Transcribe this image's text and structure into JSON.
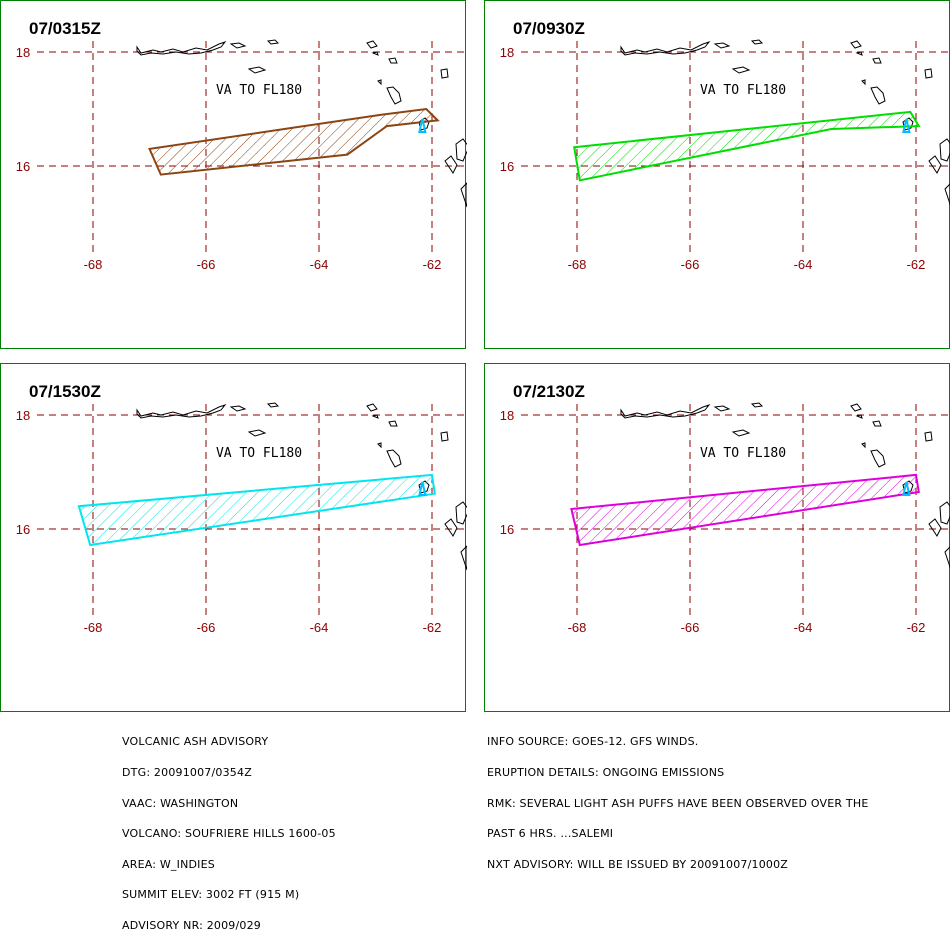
{
  "panels": [
    {
      "time": "07/0315Z",
      "label": "VA TO FL180",
      "color": "#8B4513",
      "polygon": [
        [
          -67.0,
          16.3
        ],
        [
          -66.8,
          15.85
        ],
        [
          -63.5,
          16.2
        ],
        [
          -62.8,
          16.7
        ],
        [
          -61.9,
          16.8
        ],
        [
          -62.1,
          17.0
        ],
        [
          -62.9,
          16.9
        ],
        [
          -67.0,
          16.3
        ]
      ]
    },
    {
      "time": "07/0930Z",
      "label": "VA TO FL180",
      "color": "#00DD00",
      "polygon": [
        [
          -68.05,
          16.33
        ],
        [
          -67.95,
          15.75
        ],
        [
          -63.5,
          16.65
        ],
        [
          -61.95,
          16.7
        ],
        [
          -62.1,
          16.95
        ],
        [
          -68.05,
          16.33
        ]
      ]
    },
    {
      "time": "07/1530Z",
      "label": "VA TO FL180",
      "color": "#00E5EE",
      "polygon": [
        [
          -68.25,
          16.4
        ],
        [
          -68.05,
          15.72
        ],
        [
          -61.95,
          16.62
        ],
        [
          -62.0,
          16.95
        ],
        [
          -68.25,
          16.4
        ]
      ]
    },
    {
      "time": "07/2130Z",
      "label": "VA TO FL180",
      "color": "#DD00DD",
      "polygon": [
        [
          -68.1,
          16.35
        ],
        [
          -67.95,
          15.72
        ],
        [
          -61.95,
          16.65
        ],
        [
          -62.0,
          16.95
        ],
        [
          -68.1,
          16.35
        ]
      ]
    }
  ],
  "axes": {
    "lon_ticks": [
      "-68",
      "-66",
      "-64",
      "-62"
    ],
    "lat_ticks": [
      "18",
      "16"
    ]
  },
  "advisory_left": [
    "VOLCANIC ASH ADVISORY",
    "DTG: 20091007/0354Z",
    "VAAC: WASHINGTON",
    "VOLCANO: SOUFRIERE HILLS 1600-05",
    "AREA: W_INDIES",
    "SUMMIT ELEV: 3002 FT (915 M)",
    "ADVISORY NR: 2009/029"
  ],
  "advisory_right": [
    "INFO SOURCE: GOES-12. GFS WINDS.",
    "ERUPTION DETAILS: ONGOING EMISSIONS",
    "RMK: SEVERAL LIGHT ASH PUFFS HAVE BEEN OBSERVED OVER THE",
    "PAST 6 HRS. ...SALEMI",
    "NXT ADVISORY: WILL BE ISSUED BY 20091007/1000Z"
  ]
}
